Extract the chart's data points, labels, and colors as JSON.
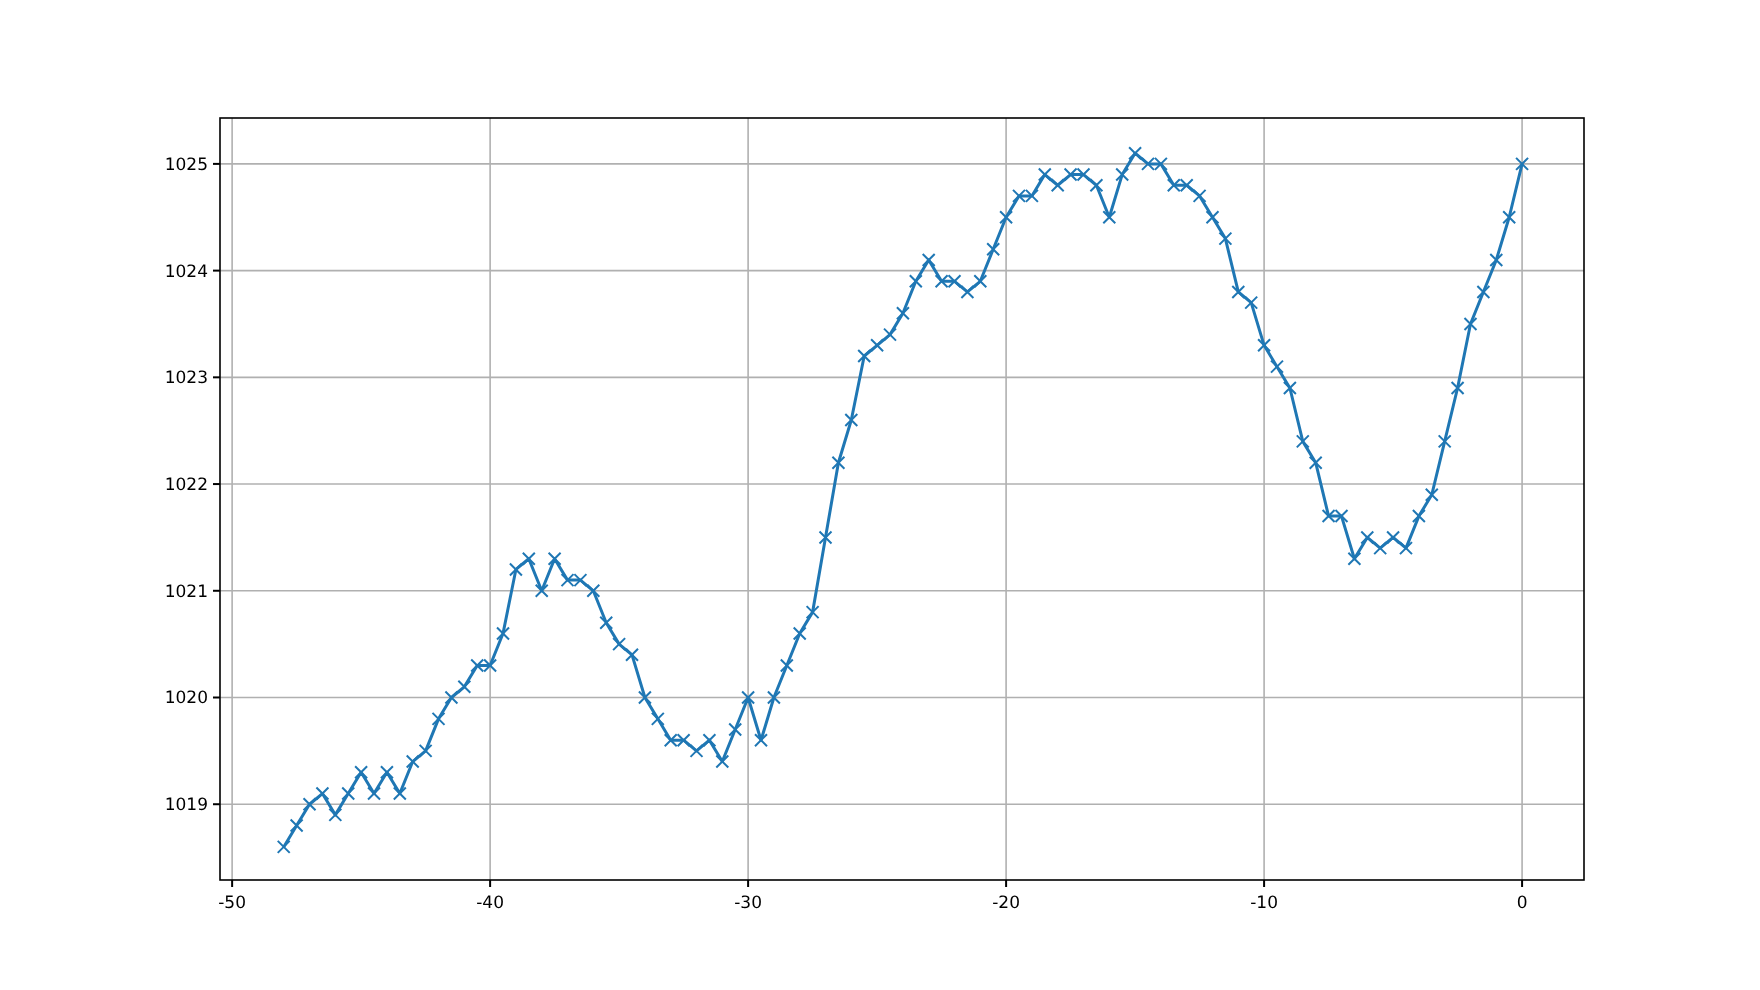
{
  "chart_data": {
    "type": "line",
    "x": [
      -48,
      -47.5,
      -47,
      -46.5,
      -46,
      -45.5,
      -45,
      -44.5,
      -44,
      -43.5,
      -43,
      -42.5,
      -42,
      -41.5,
      -41,
      -40.5,
      -40,
      -39.5,
      -39,
      -38.5,
      -38,
      -37.5,
      -37,
      -36.5,
      -36,
      -35.5,
      -35,
      -34.5,
      -34,
      -33.5,
      -33,
      -32.5,
      -32,
      -31.5,
      -31,
      -30.5,
      -30,
      -29.5,
      -29,
      -28.5,
      -28,
      -27.5,
      -27,
      -26.5,
      -26,
      -25.5,
      -25,
      -24.5,
      -24,
      -23.5,
      -23,
      -22.5,
      -22,
      -21.5,
      -21,
      -20.5,
      -20,
      -19.5,
      -19,
      -18.5,
      -18,
      -17.5,
      -17,
      -16.5,
      -16,
      -15.5,
      -15,
      -14.5,
      -14,
      -13.5,
      -13,
      -12.5,
      -12,
      -11.5,
      -11,
      -10.5,
      -10,
      -9.5,
      -9,
      -8.5,
      -8,
      -7.5,
      -7,
      -6.5,
      -6,
      -5.5,
      -5,
      -4.5,
      -4,
      -3.5,
      -3,
      -2.5,
      -2,
      -1.5,
      -1,
      -0.5,
      0
    ],
    "series": [
      {
        "color": "#1f77b4",
        "values": [
          1018.6,
          1018.8,
          1019.0,
          1019.1,
          1018.9,
          1019.1,
          1019.3,
          1019.1,
          1019.3,
          1019.1,
          1019.4,
          1019.5,
          1019.8,
          1020.0,
          1020.1,
          1020.3,
          1020.3,
          1020.6,
          1021.2,
          1021.3,
          1021.0,
          1021.3,
          1021.1,
          1021.1,
          1021.0,
          1020.7,
          1020.5,
          1020.4,
          1020.0,
          1019.8,
          1019.6,
          1019.6,
          1019.5,
          1019.6,
          1019.4,
          1019.7,
          1020.0,
          1019.6,
          1020.0,
          1020.3,
          1020.6,
          1020.8,
          1021.5,
          1022.2,
          1022.6,
          1023.2,
          1023.3,
          1023.4,
          1023.6,
          1023.9,
          1024.1,
          1023.9,
          1023.9,
          1023.8,
          1023.9,
          1024.2,
          1024.5,
          1024.7,
          1024.7,
          1024.9,
          1024.8,
          1024.9,
          1024.9,
          1024.8,
          1024.5,
          1024.9,
          1025.1,
          1025.0,
          1025.0,
          1024.8,
          1024.8,
          1024.7,
          1024.5,
          1024.3,
          1023.8,
          1023.7,
          1023.3,
          1023.1,
          1022.9,
          1022.4,
          1022.2,
          1021.7,
          1021.7,
          1021.3,
          1021.5,
          1021.4,
          1021.5,
          1021.4,
          1021.7,
          1021.9,
          1022.4,
          1022.9,
          1023.5,
          1023.8,
          1024.1,
          1024.5,
          1025.0
        ]
      }
    ],
    "xlim": [
      -50.47,
      2.4
    ],
    "ylim": [
      1018.29,
      1025.43
    ],
    "xticks": [
      -50,
      -40,
      -30,
      -20,
      -10,
      0
    ],
    "yticks": [
      1019,
      1020,
      1021,
      1022,
      1023,
      1024,
      1025
    ],
    "grid": true,
    "marker": "cross",
    "line_style": "solid"
  }
}
